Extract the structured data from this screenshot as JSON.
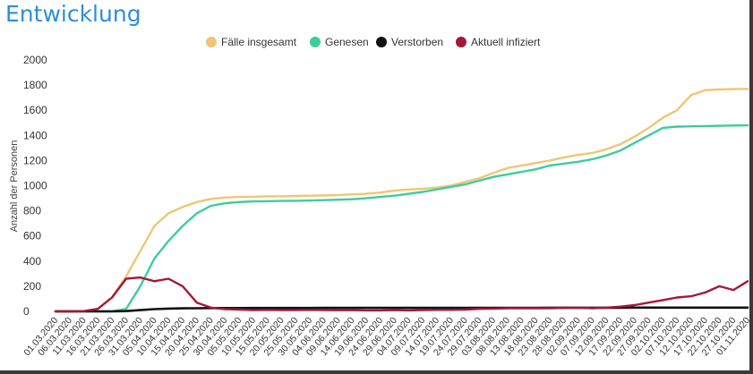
{
  "page": {
    "title": "Entwicklung"
  },
  "chart_data": {
    "type": "line",
    "title": "Entwicklung",
    "xlabel": "",
    "ylabel": "Anzahl der Personen",
    "ylim": [
      0,
      2000
    ],
    "yticks": [
      0,
      200,
      400,
      600,
      800,
      1000,
      1200,
      1400,
      1600,
      1800,
      2000
    ],
    "legend_position": "top-center",
    "grid": false,
    "categories": [
      "01.03.2020",
      "06.03.2020",
      "11.03.2020",
      "16.03.2020",
      "21.03.2020",
      "26.03.2020",
      "31.03.2020",
      "05.04.2020",
      "10.04.2020",
      "15.04.2020",
      "20.04.2020",
      "25.04.2020",
      "30.04.2020",
      "05.05.2020",
      "10.05.2020",
      "15.05.2020",
      "20.05.2020",
      "25.05.2020",
      "30.05.2020",
      "04.06.2020",
      "09.06.2020",
      "14.06.2020",
      "19.06.2020",
      "24.06.2020",
      "29.06.2020",
      "04.07.2020",
      "09.07.2020",
      "14.07.2020",
      "19.07.2020",
      "24.07.2020",
      "29.07.2020",
      "03.08.2020",
      "08.08.2020",
      "13.08.2020",
      "18.08.2020",
      "23.08.2020",
      "28.08.2020",
      "02.09.2020",
      "07.09.2020",
      "12.09.2020",
      "17.09.2020",
      "22.09.2020",
      "27.09.2020",
      "02.10.2020",
      "07.10.2020",
      "12.10.2020",
      "17.10.2020",
      "22.10.2020",
      "27.10.2020",
      "01.11.2020"
    ],
    "series": [
      {
        "name": "Fälle insgesamt",
        "color": "#f0c674",
        "values": [
          0,
          0,
          2,
          20,
          110,
          280,
          480,
          680,
          780,
          830,
          870,
          895,
          905,
          910,
          912,
          915,
          915,
          918,
          920,
          922,
          925,
          930,
          935,
          945,
          960,
          970,
          975,
          985,
          1000,
          1030,
          1060,
          1100,
          1140,
          1160,
          1180,
          1200,
          1225,
          1245,
          1260,
          1290,
          1330,
          1390,
          1460,
          1540,
          1600,
          1720,
          1760,
          1765,
          1768,
          1770
        ]
      },
      {
        "name": "Genesen",
        "color": "#3dcc9e",
        "values": [
          0,
          0,
          0,
          0,
          0,
          20,
          200,
          420,
          560,
          680,
          780,
          840,
          860,
          870,
          875,
          876,
          878,
          880,
          882,
          885,
          888,
          892,
          900,
          910,
          920,
          935,
          950,
          970,
          990,
          1010,
          1040,
          1070,
          1090,
          1110,
          1130,
          1160,
          1175,
          1190,
          1210,
          1240,
          1280,
          1340,
          1400,
          1460,
          1470,
          1472,
          1474,
          1476,
          1478,
          1480
        ]
      },
      {
        "name": "Verstorben",
        "color": "#111111",
        "values": [
          0,
          0,
          0,
          0,
          0,
          2,
          10,
          18,
          22,
          24,
          25,
          26,
          26,
          26,
          27,
          27,
          27,
          27,
          27,
          28,
          28,
          28,
          28,
          28,
          28,
          28,
          28,
          28,
          28,
          28,
          28,
          28,
          28,
          28,
          28,
          29,
          29,
          29,
          29,
          29,
          29,
          30,
          30,
          30,
          30,
          30,
          30,
          30,
          30,
          30
        ]
      },
      {
        "name": "Aktuell infiziert",
        "color": "#a3183b",
        "values": [
          0,
          0,
          2,
          20,
          110,
          260,
          270,
          240,
          260,
          200,
          70,
          30,
          18,
          14,
          10,
          12,
          10,
          11,
          12,
          10,
          9,
          10,
          8,
          8,
          10,
          8,
          10,
          12,
          12,
          14,
          20,
          22,
          25,
          25,
          25,
          25,
          28,
          30,
          25,
          30,
          38,
          50,
          70,
          90,
          110,
          120,
          150,
          200,
          170,
          240
        ]
      }
    ]
  }
}
